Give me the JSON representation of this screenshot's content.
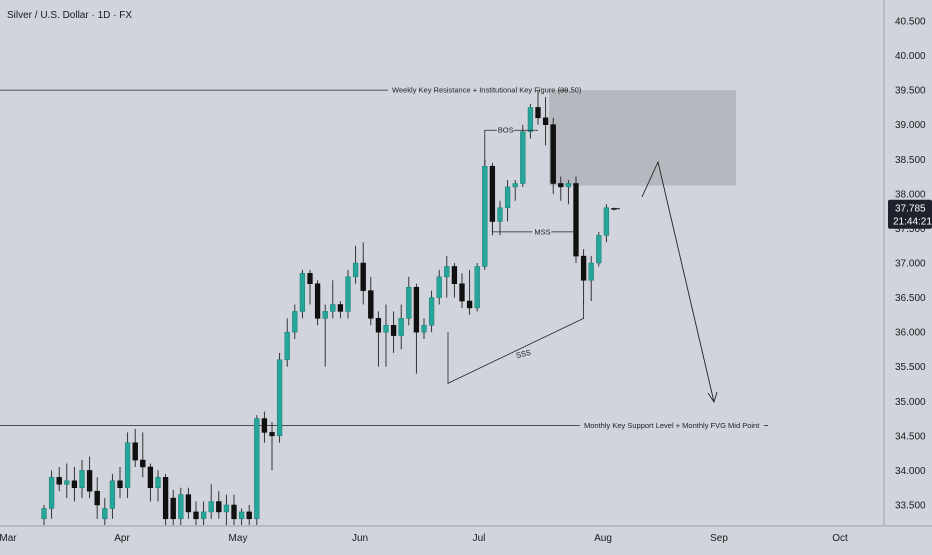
{
  "chart_data": {
    "type": "candlestick",
    "title": "Silver / U.S. Dollar · 1D · FX",
    "xlabel": "",
    "ylabel": "",
    "ylim": [
      33.2,
      40.8
    ],
    "grid": false,
    "colors": {
      "background": "#d1d4dc",
      "up": "#26a69a",
      "down": "#111111",
      "line": "#111111",
      "zone": "#b5b8bf",
      "badge": "#1e222d"
    },
    "y_ticks": [
      "40.500",
      "40.000",
      "39.500",
      "39.000",
      "38.500",
      "38.000",
      "37.500",
      "37.000",
      "36.500",
      "36.000",
      "35.500",
      "35.000",
      "34.500",
      "34.000",
      "33.500"
    ],
    "x_ticks": [
      "Mar",
      "Apr",
      "May",
      "Jun",
      "Jul",
      "Aug",
      "Sep",
      "Oct"
    ],
    "price_badge": {
      "price": "37.785",
      "countdown": "21:44:21",
      "partial_tick": "37.500"
    },
    "annotations": {
      "resistance_label": "Weekly Key Resistance + Institutional Key Figure (39.50)",
      "support_label": "Monthly Key Support Level + Monthly FVG Mid Point",
      "bos_label": "BOS",
      "mss_label": "MSS",
      "sss_label": "SSS"
    },
    "levels": {
      "resistance": 39.5,
      "support": 34.65
    },
    "zone": {
      "top": 39.5,
      "bottom": 38.12
    },
    "candles": [
      {
        "o": 33.3,
        "h": 33.5,
        "l": 33.2,
        "c": 33.45
      },
      {
        "o": 33.45,
        "h": 34.0,
        "l": 33.3,
        "c": 33.9
      },
      {
        "o": 33.9,
        "h": 34.05,
        "l": 33.7,
        "c": 33.8
      },
      {
        "o": 33.8,
        "h": 34.1,
        "l": 33.6,
        "c": 33.85
      },
      {
        "o": 33.85,
        "h": 34.05,
        "l": 33.55,
        "c": 33.75
      },
      {
        "o": 33.75,
        "h": 34.15,
        "l": 33.6,
        "c": 34.0
      },
      {
        "o": 34.0,
        "h": 34.2,
        "l": 33.6,
        "c": 33.7
      },
      {
        "o": 33.7,
        "h": 33.9,
        "l": 33.3,
        "c": 33.5
      },
      {
        "o": 33.3,
        "h": 33.6,
        "l": 33.2,
        "c": 33.45
      },
      {
        "o": 33.45,
        "h": 33.95,
        "l": 33.3,
        "c": 33.85
      },
      {
        "o": 33.85,
        "h": 34.05,
        "l": 33.6,
        "c": 33.75
      },
      {
        "o": 33.75,
        "h": 34.55,
        "l": 33.6,
        "c": 34.4
      },
      {
        "o": 34.4,
        "h": 34.6,
        "l": 34.05,
        "c": 34.15
      },
      {
        "o": 34.15,
        "h": 34.55,
        "l": 33.9,
        "c": 34.05
      },
      {
        "o": 34.05,
        "h": 34.1,
        "l": 33.55,
        "c": 33.75
      },
      {
        "o": 33.75,
        "h": 34.0,
        "l": 33.55,
        "c": 33.9
      },
      {
        "o": 33.9,
        "h": 33.95,
        "l": 33.2,
        "c": 33.3
      },
      {
        "o": 33.6,
        "h": 33.72,
        "l": 33.2,
        "c": 33.3
      },
      {
        "o": 33.3,
        "h": 33.75,
        "l": 33.2,
        "c": 33.65
      },
      {
        "o": 33.65,
        "h": 33.75,
        "l": 33.3,
        "c": 33.4
      },
      {
        "o": 33.4,
        "h": 33.55,
        "l": 33.2,
        "c": 33.3
      },
      {
        "o": 33.3,
        "h": 33.55,
        "l": 33.2,
        "c": 33.4
      },
      {
        "o": 33.4,
        "h": 33.8,
        "l": 33.3,
        "c": 33.55
      },
      {
        "o": 33.55,
        "h": 33.7,
        "l": 33.3,
        "c": 33.4
      },
      {
        "o": 33.4,
        "h": 33.65,
        "l": 33.2,
        "c": 33.5
      },
      {
        "o": 33.5,
        "h": 33.65,
        "l": 33.2,
        "c": 33.3
      },
      {
        "o": 33.3,
        "h": 33.45,
        "l": 33.2,
        "c": 33.4
      },
      {
        "o": 33.4,
        "h": 33.5,
        "l": 33.2,
        "c": 33.3
      },
      {
        "o": 33.3,
        "h": 34.8,
        "l": 33.2,
        "c": 34.75
      },
      {
        "o": 34.75,
        "h": 34.85,
        "l": 34.4,
        "c": 34.55
      },
      {
        "o": 34.55,
        "h": 34.7,
        "l": 34.0,
        "c": 34.5
      },
      {
        "o": 34.5,
        "h": 35.7,
        "l": 34.4,
        "c": 35.6
      },
      {
        "o": 35.6,
        "h": 36.2,
        "l": 35.5,
        "c": 36.0
      },
      {
        "o": 36.0,
        "h": 36.4,
        "l": 35.9,
        "c": 36.3
      },
      {
        "o": 36.3,
        "h": 36.9,
        "l": 36.2,
        "c": 36.85
      },
      {
        "o": 36.85,
        "h": 36.9,
        "l": 36.4,
        "c": 36.7
      },
      {
        "o": 36.7,
        "h": 36.75,
        "l": 36.1,
        "c": 36.2
      },
      {
        "o": 36.2,
        "h": 36.4,
        "l": 35.5,
        "c": 36.3
      },
      {
        "o": 36.3,
        "h": 36.75,
        "l": 36.2,
        "c": 36.4
      },
      {
        "o": 36.4,
        "h": 36.45,
        "l": 36.2,
        "c": 36.3
      },
      {
        "o": 36.3,
        "h": 36.9,
        "l": 36.2,
        "c": 36.8
      },
      {
        "o": 36.8,
        "h": 37.25,
        "l": 36.7,
        "c": 37.0
      },
      {
        "o": 37.0,
        "h": 37.3,
        "l": 36.4,
        "c": 36.6
      },
      {
        "o": 36.6,
        "h": 36.8,
        "l": 36.1,
        "c": 36.2
      },
      {
        "o": 36.2,
        "h": 36.3,
        "l": 35.5,
        "c": 36.0
      },
      {
        "o": 36.0,
        "h": 36.4,
        "l": 35.5,
        "c": 36.1
      },
      {
        "o": 36.1,
        "h": 36.3,
        "l": 35.7,
        "c": 35.95
      },
      {
        "o": 35.95,
        "h": 36.4,
        "l": 35.75,
        "c": 36.2
      },
      {
        "o": 36.2,
        "h": 36.8,
        "l": 36.1,
        "c": 36.65
      },
      {
        "o": 36.65,
        "h": 36.7,
        "l": 35.4,
        "c": 36.0
      },
      {
        "o": 36.0,
        "h": 36.2,
        "l": 35.9,
        "c": 36.1
      },
      {
        "o": 36.1,
        "h": 36.6,
        "l": 36.0,
        "c": 36.5
      },
      {
        "o": 36.5,
        "h": 36.9,
        "l": 36.4,
        "c": 36.8
      },
      {
        "o": 36.8,
        "h": 37.1,
        "l": 36.5,
        "c": 36.95
      },
      {
        "o": 36.95,
        "h": 37.0,
        "l": 36.5,
        "c": 36.7
      },
      {
        "o": 36.7,
        "h": 36.85,
        "l": 36.35,
        "c": 36.45
      },
      {
        "o": 36.45,
        "h": 36.9,
        "l": 36.25,
        "c": 36.35
      },
      {
        "o": 36.35,
        "h": 37.0,
        "l": 36.3,
        "c": 36.95
      },
      {
        "o": 36.95,
        "h": 38.5,
        "l": 36.9,
        "c": 38.4
      },
      {
        "o": 38.4,
        "h": 38.45,
        "l": 37.4,
        "c": 37.6
      },
      {
        "o": 37.6,
        "h": 37.9,
        "l": 37.4,
        "c": 37.8
      },
      {
        "o": 37.8,
        "h": 38.2,
        "l": 37.6,
        "c": 38.1
      },
      {
        "o": 38.1,
        "h": 38.2,
        "l": 37.9,
        "c": 38.15
      },
      {
        "o": 38.15,
        "h": 39.0,
        "l": 38.1,
        "c": 38.9
      },
      {
        "o": 38.9,
        "h": 39.3,
        "l": 38.8,
        "c": 39.25
      },
      {
        "o": 39.25,
        "h": 39.5,
        "l": 39.0,
        "c": 39.1
      },
      {
        "o": 39.1,
        "h": 39.4,
        "l": 38.7,
        "c": 39.0
      },
      {
        "o": 39.0,
        "h": 39.1,
        "l": 38.0,
        "c": 38.15
      },
      {
        "o": 38.15,
        "h": 38.25,
        "l": 37.9,
        "c": 38.1
      },
      {
        "o": 38.1,
        "h": 38.2,
        "l": 37.85,
        "c": 38.15
      },
      {
        "o": 38.15,
        "h": 38.25,
        "l": 37.0,
        "c": 37.1
      },
      {
        "o": 37.1,
        "h": 37.2,
        "l": 36.4,
        "c": 36.75
      },
      {
        "o": 36.75,
        "h": 37.1,
        "l": 36.45,
        "c": 37.0
      },
      {
        "o": 37.0,
        "h": 37.45,
        "l": 36.95,
        "c": 37.4
      },
      {
        "o": 37.4,
        "h": 37.85,
        "l": 37.3,
        "c": 37.8
      },
      {
        "o": 37.79,
        "h": 37.8,
        "l": 37.76,
        "c": 37.785
      }
    ]
  }
}
